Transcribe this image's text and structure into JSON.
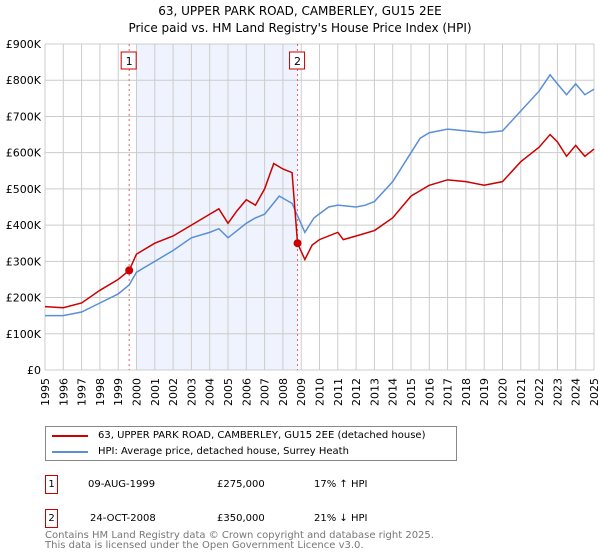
{
  "chart_data": {
    "type": "line",
    "title": "63, UPPER PARK ROAD, CAMBERLEY, GU15 2EE",
    "subtitle": "Price paid vs. HM Land Registry's House Price Index (HPI)",
    "xlim": [
      1995,
      2025
    ],
    "ylim": [
      0,
      900000
    ],
    "yticks": [
      "£0",
      "£100K",
      "£200K",
      "£300K",
      "£400K",
      "£500K",
      "£600K",
      "£700K",
      "£800K",
      "£900K"
    ],
    "xticks": [
      "1995",
      "1996",
      "1997",
      "1998",
      "1999",
      "2000",
      "2001",
      "2002",
      "2003",
      "2004",
      "2005",
      "2006",
      "2007",
      "2008",
      "2009",
      "2010",
      "2011",
      "2012",
      "2013",
      "2014",
      "2015",
      "2016",
      "2017",
      "2018",
      "2019",
      "2020",
      "2021",
      "2022",
      "2023",
      "2024",
      "2025"
    ],
    "grid": true,
    "series": [
      {
        "name": "63, UPPER PARK ROAD, CAMBERLEY, GU15 2EE (detached house)",
        "color": "#cc0000",
        "x": [
          1995,
          1996,
          1997,
          1998,
          1999,
          1999.6,
          2000,
          2001,
          2002,
          2003,
          2004,
          2004.5,
          2005,
          2005.5,
          2006,
          2006.5,
          2007,
          2007.5,
          2008,
          2008.5,
          2008.8,
          2009.2,
          2009.6,
          2010,
          2011,
          2011.3,
          2012,
          2013,
          2014,
          2015,
          2016,
          2017,
          2018,
          2019,
          2020,
          2021,
          2022,
          2022.6,
          2023,
          2023.5,
          2024,
          2024.5,
          2025
        ],
        "y": [
          175,
          172,
          185,
          220,
          250,
          275,
          320,
          350,
          370,
          400,
          430,
          445,
          405,
          440,
          470,
          455,
          500,
          570,
          555,
          545,
          350,
          305,
          345,
          360,
          380,
          360,
          370,
          385,
          420,
          480,
          510,
          525,
          520,
          510,
          520,
          575,
          615,
          650,
          630,
          590,
          620,
          590,
          610
        ]
      },
      {
        "name": "HPI: Average price, detached house, Surrey Heath",
        "color": "#5b8fd6",
        "x": [
          1995,
          1996,
          1997,
          1998,
          1999,
          1999.6,
          2000,
          2001,
          2002,
          2003,
          2004,
          2004.5,
          2005,
          2005.5,
          2006,
          2006.5,
          2007,
          2007.8,
          2008.5,
          2009.2,
          2009.7,
          2010.5,
          2011,
          2012,
          2012.5,
          2013,
          2014,
          2015,
          2015.5,
          2016,
          2017,
          2018,
          2019,
          2020,
          2021,
          2022,
          2022.6,
          2023,
          2023.5,
          2024,
          2024.5,
          2025
        ],
        "y": [
          150,
          150,
          160,
          185,
          210,
          235,
          270,
          300,
          330,
          365,
          380,
          390,
          365,
          385,
          405,
          420,
          430,
          480,
          460,
          380,
          420,
          450,
          455,
          450,
          455,
          465,
          520,
          600,
          640,
          655,
          665,
          660,
          655,
          660,
          715,
          770,
          815,
          790,
          760,
          790,
          760,
          775
        ]
      }
    ],
    "y_units": "thousands GBP",
    "annotations": [
      {
        "label": "1",
        "x": 1999.6,
        "y": 275
      },
      {
        "label": "2",
        "x": 2008.8,
        "y": 350
      }
    ],
    "shaded_range": [
      2000,
      2008.8
    ]
  },
  "legend": {
    "red": "63, UPPER PARK ROAD, CAMBERLEY, GU15 2EE (detached house)",
    "blue": "HPI: Average price, detached house, Surrey Heath"
  },
  "sales": [
    {
      "num": "1",
      "date": "09-AUG-1999",
      "price": "£275,000",
      "hpi": "17% ↑ HPI"
    },
    {
      "num": "2",
      "date": "24-OCT-2008",
      "price": "£350,000",
      "hpi": "21% ↓ HPI"
    }
  ],
  "footer": [
    "Contains HM Land Registry data © Crown copyright and database right 2025.",
    "This data is licensed under the Open Government Licence v3.0."
  ]
}
